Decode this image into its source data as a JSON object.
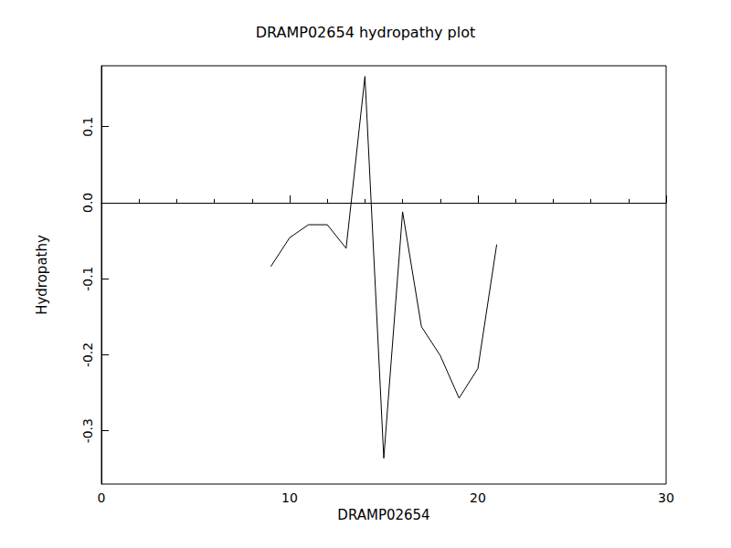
{
  "chart_data": {
    "type": "line",
    "title": "DRAMP02654 hydropathy plot",
    "x_label": "DRAMP02654",
    "y_label": "Hydropathy",
    "x": [
      9,
      10,
      11,
      12,
      13,
      14,
      15,
      16,
      17,
      18,
      19,
      20,
      21
    ],
    "values": [
      -0.084,
      -0.046,
      -0.029,
      -0.029,
      -0.06,
      0.166,
      -0.336,
      -0.012,
      -0.163,
      -0.201,
      -0.257,
      -0.218,
      -0.055
    ],
    "color": "#000000",
    "xlim": [
      0,
      30
    ],
    "xticks": [
      0,
      10,
      20,
      30
    ],
    "ylim": [
      -0.37,
      0.18
    ],
    "yticks": [
      -0.3,
      -0.2,
      -0.1,
      {
        "value": 0,
        "label": "0.0"
      },
      0.1
    ],
    "grid": false
  }
}
